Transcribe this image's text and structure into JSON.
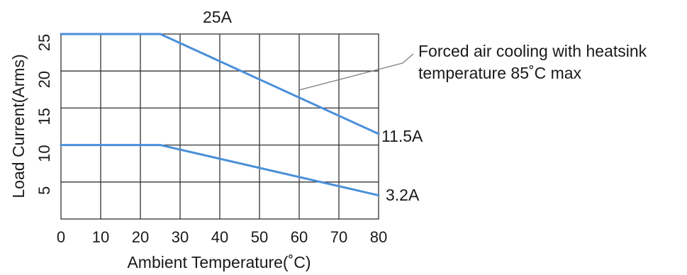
{
  "chart_data": {
    "type": "line",
    "title": "",
    "xlabel": "Ambient Temperature(˚C)",
    "ylabel": "Load Current(Arms)",
    "xlim": [
      0,
      80
    ],
    "ylim": [
      0,
      25
    ],
    "xticks": [
      0,
      10,
      20,
      30,
      40,
      50,
      60,
      70,
      80
    ],
    "yticks": [
      5,
      10,
      15,
      20,
      25
    ],
    "grid": true,
    "series_color": "#4a90d9",
    "series": [
      {
        "points": [
          [
            0,
            25
          ],
          [
            25,
            25
          ],
          [
            80,
            11.5
          ]
        ]
      },
      {
        "points": [
          [
            0,
            10
          ],
          [
            25,
            10
          ],
          [
            80,
            3.2
          ]
        ]
      }
    ],
    "annotations": {
      "top_label": "25A",
      "end_label_upper": "11.5A",
      "end_label_lower": "3.2A",
      "note_line1": "Forced air cooling with heatsink",
      "note_line2": "temperature 85˚C max"
    }
  }
}
